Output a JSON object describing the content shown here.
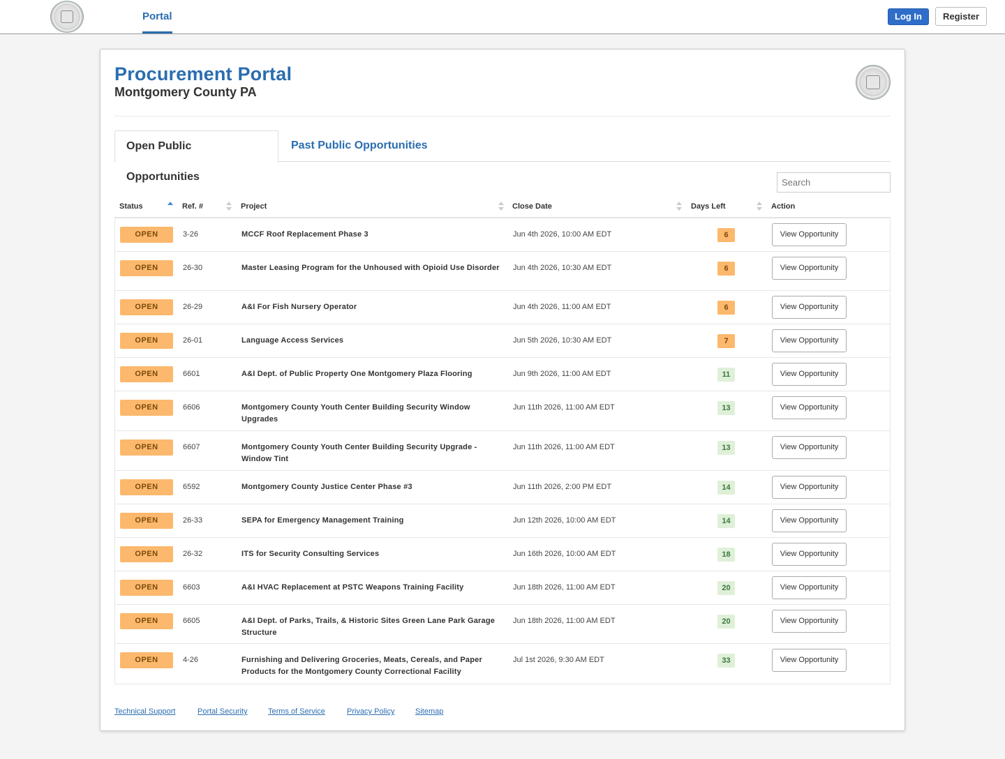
{
  "nav": {
    "portal_label": "Portal",
    "login_label": "Log In",
    "register_label": "Register"
  },
  "header": {
    "title": "Procurement Portal",
    "subtitle": "Montgomery County PA"
  },
  "tabs": [
    {
      "label": "Open Public Opportunities",
      "active": true
    },
    {
      "label": "Past Public Opportunities",
      "active": false
    }
  ],
  "search": {
    "placeholder": "Search"
  },
  "table": {
    "columns": [
      "Status",
      "Ref. #",
      "Project",
      "Close Date",
      "Days Left",
      "Action"
    ],
    "rows": [
      {
        "status": "OPEN",
        "ref": "3-26",
        "project": "MCCF Roof Replacement Phase 3",
        "close_date": "Jun 4th 2026, 10:00 AM EDT",
        "days_left": "6",
        "action": "View Opportunity"
      },
      {
        "status": "OPEN",
        "ref": "26-30",
        "project": "Master Leasing Program for the Unhoused with Opioid Use Disorder",
        "close_date": "Jun 4th 2026, 10:30 AM EDT",
        "days_left": "6",
        "action": "View Opportunity"
      },
      {
        "status": "OPEN",
        "ref": "26-29",
        "project": "A&I For Fish Nursery Operator",
        "close_date": "Jun 4th 2026, 11:00 AM EDT",
        "days_left": "6",
        "action": "View Opportunity"
      },
      {
        "status": "OPEN",
        "ref": "26-01",
        "project": "Language Access Services",
        "close_date": "Jun 5th 2026, 10:30 AM EDT",
        "days_left": "7",
        "action": "View Opportunity"
      },
      {
        "status": "OPEN",
        "ref": "6601",
        "project": "A&I Dept. of Public Property One Montgomery Plaza Flooring",
        "close_date": "Jun 9th 2026, 11:00 AM EDT",
        "days_left": "11",
        "action": "View Opportunity"
      },
      {
        "status": "OPEN",
        "ref": "6606",
        "project": "Montgomery County Youth Center Building Security Window Upgrades",
        "close_date": "Jun 11th 2026, 11:00 AM EDT",
        "days_left": "13",
        "action": "View Opportunity"
      },
      {
        "status": "OPEN",
        "ref": "6607",
        "project": "Montgomery County Youth Center Building Security Upgrade - Window Tint",
        "close_date": "Jun 11th 2026, 11:00 AM EDT",
        "days_left": "13",
        "action": "View Opportunity"
      },
      {
        "status": "OPEN",
        "ref": "6592",
        "project": "Montgomery County Justice Center Phase #3",
        "close_date": "Jun 11th 2026, 2:00 PM EDT",
        "days_left": "14",
        "action": "View Opportunity"
      },
      {
        "status": "OPEN",
        "ref": "26-33",
        "project": "SEPA for Emergency Management Training",
        "close_date": "Jun 12th 2026, 10:00 AM EDT",
        "days_left": "14",
        "action": "View Opportunity"
      },
      {
        "status": "OPEN",
        "ref": "26-32",
        "project": "ITS for Security Consulting Services",
        "close_date": "Jun 16th 2026, 10:00 AM EDT",
        "days_left": "18",
        "action": "View Opportunity"
      },
      {
        "status": "OPEN",
        "ref": "6603",
        "project": "A&I HVAC Replacement at PSTC Weapons Training Facility",
        "close_date": "Jun 18th 2026, 11:00 AM EDT",
        "days_left": "20",
        "action": "View Opportunity"
      },
      {
        "status": "OPEN",
        "ref": "6605",
        "project": "A&I Dept. of Parks, Trails, & Historic Sites Green Lane Park Garage Structure",
        "close_date": "Jun 18th 2026, 11:00 AM EDT",
        "days_left": "20",
        "action": "View Opportunity"
      },
      {
        "status": "OPEN",
        "ref": "4-26",
        "project": "Furnishing and Delivering Groceries, Meats, Cereals, and Paper Products for the Montgomery County Correctional Facility",
        "close_date": "Jul 1st 2026, 9:30 AM EDT",
        "days_left": "33",
        "action": "View Opportunity"
      }
    ]
  },
  "footer": {
    "links": [
      "Technical Support",
      "Portal Security",
      "Terms of Service",
      "Privacy Policy",
      "Sitemap"
    ]
  },
  "colors": {
    "brand_blue": "#2a6db0",
    "open_badge": "#fcb86c",
    "days_ok_bg": "#dff0d8",
    "days_ok_text": "#3c763d"
  },
  "icons": {
    "county_seal": "county-seal-icon",
    "sort": "sort-icon"
  }
}
